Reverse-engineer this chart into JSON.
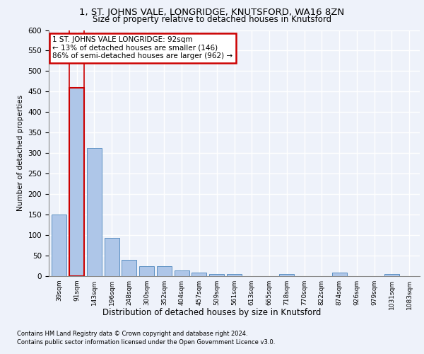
{
  "title_line1": "1, ST. JOHNS VALE, LONGRIDGE, KNUTSFORD, WA16 8ZN",
  "title_line2": "Size of property relative to detached houses in Knutsford",
  "xlabel": "Distribution of detached houses by size in Knutsford",
  "ylabel": "Number of detached properties",
  "categories": [
    "39sqm",
    "91sqm",
    "143sqm",
    "196sqm",
    "248sqm",
    "300sqm",
    "352sqm",
    "404sqm",
    "457sqm",
    "509sqm",
    "561sqm",
    "613sqm",
    "665sqm",
    "718sqm",
    "770sqm",
    "822sqm",
    "874sqm",
    "926sqm",
    "979sqm",
    "1031sqm",
    "1083sqm"
  ],
  "values": [
    150,
    460,
    313,
    93,
    40,
    25,
    25,
    14,
    8,
    6,
    6,
    0,
    0,
    5,
    0,
    0,
    8,
    0,
    0,
    5,
    0
  ],
  "bar_color": "#aec6e8",
  "bar_edge_color": "#5a8fc2",
  "highlight_bar_index": 1,
  "highlight_bar_edge_color": "#cc0000",
  "annotation_text": "1 ST. JOHNS VALE LONGRIDGE: 92sqm\n← 13% of detached houses are smaller (146)\n86% of semi-detached houses are larger (962) →",
  "annotation_box_color": "#ffffff",
  "annotation_box_edge_color": "#cc0000",
  "bg_color": "#eef2fa",
  "grid_color": "#ffffff",
  "ylim": [
    0,
    600
  ],
  "yticks": [
    0,
    50,
    100,
    150,
    200,
    250,
    300,
    350,
    400,
    450,
    500,
    550,
    600
  ],
  "footnote1": "Contains HM Land Registry data © Crown copyright and database right 2024.",
  "footnote2": "Contains public sector information licensed under the Open Government Licence v3.0."
}
